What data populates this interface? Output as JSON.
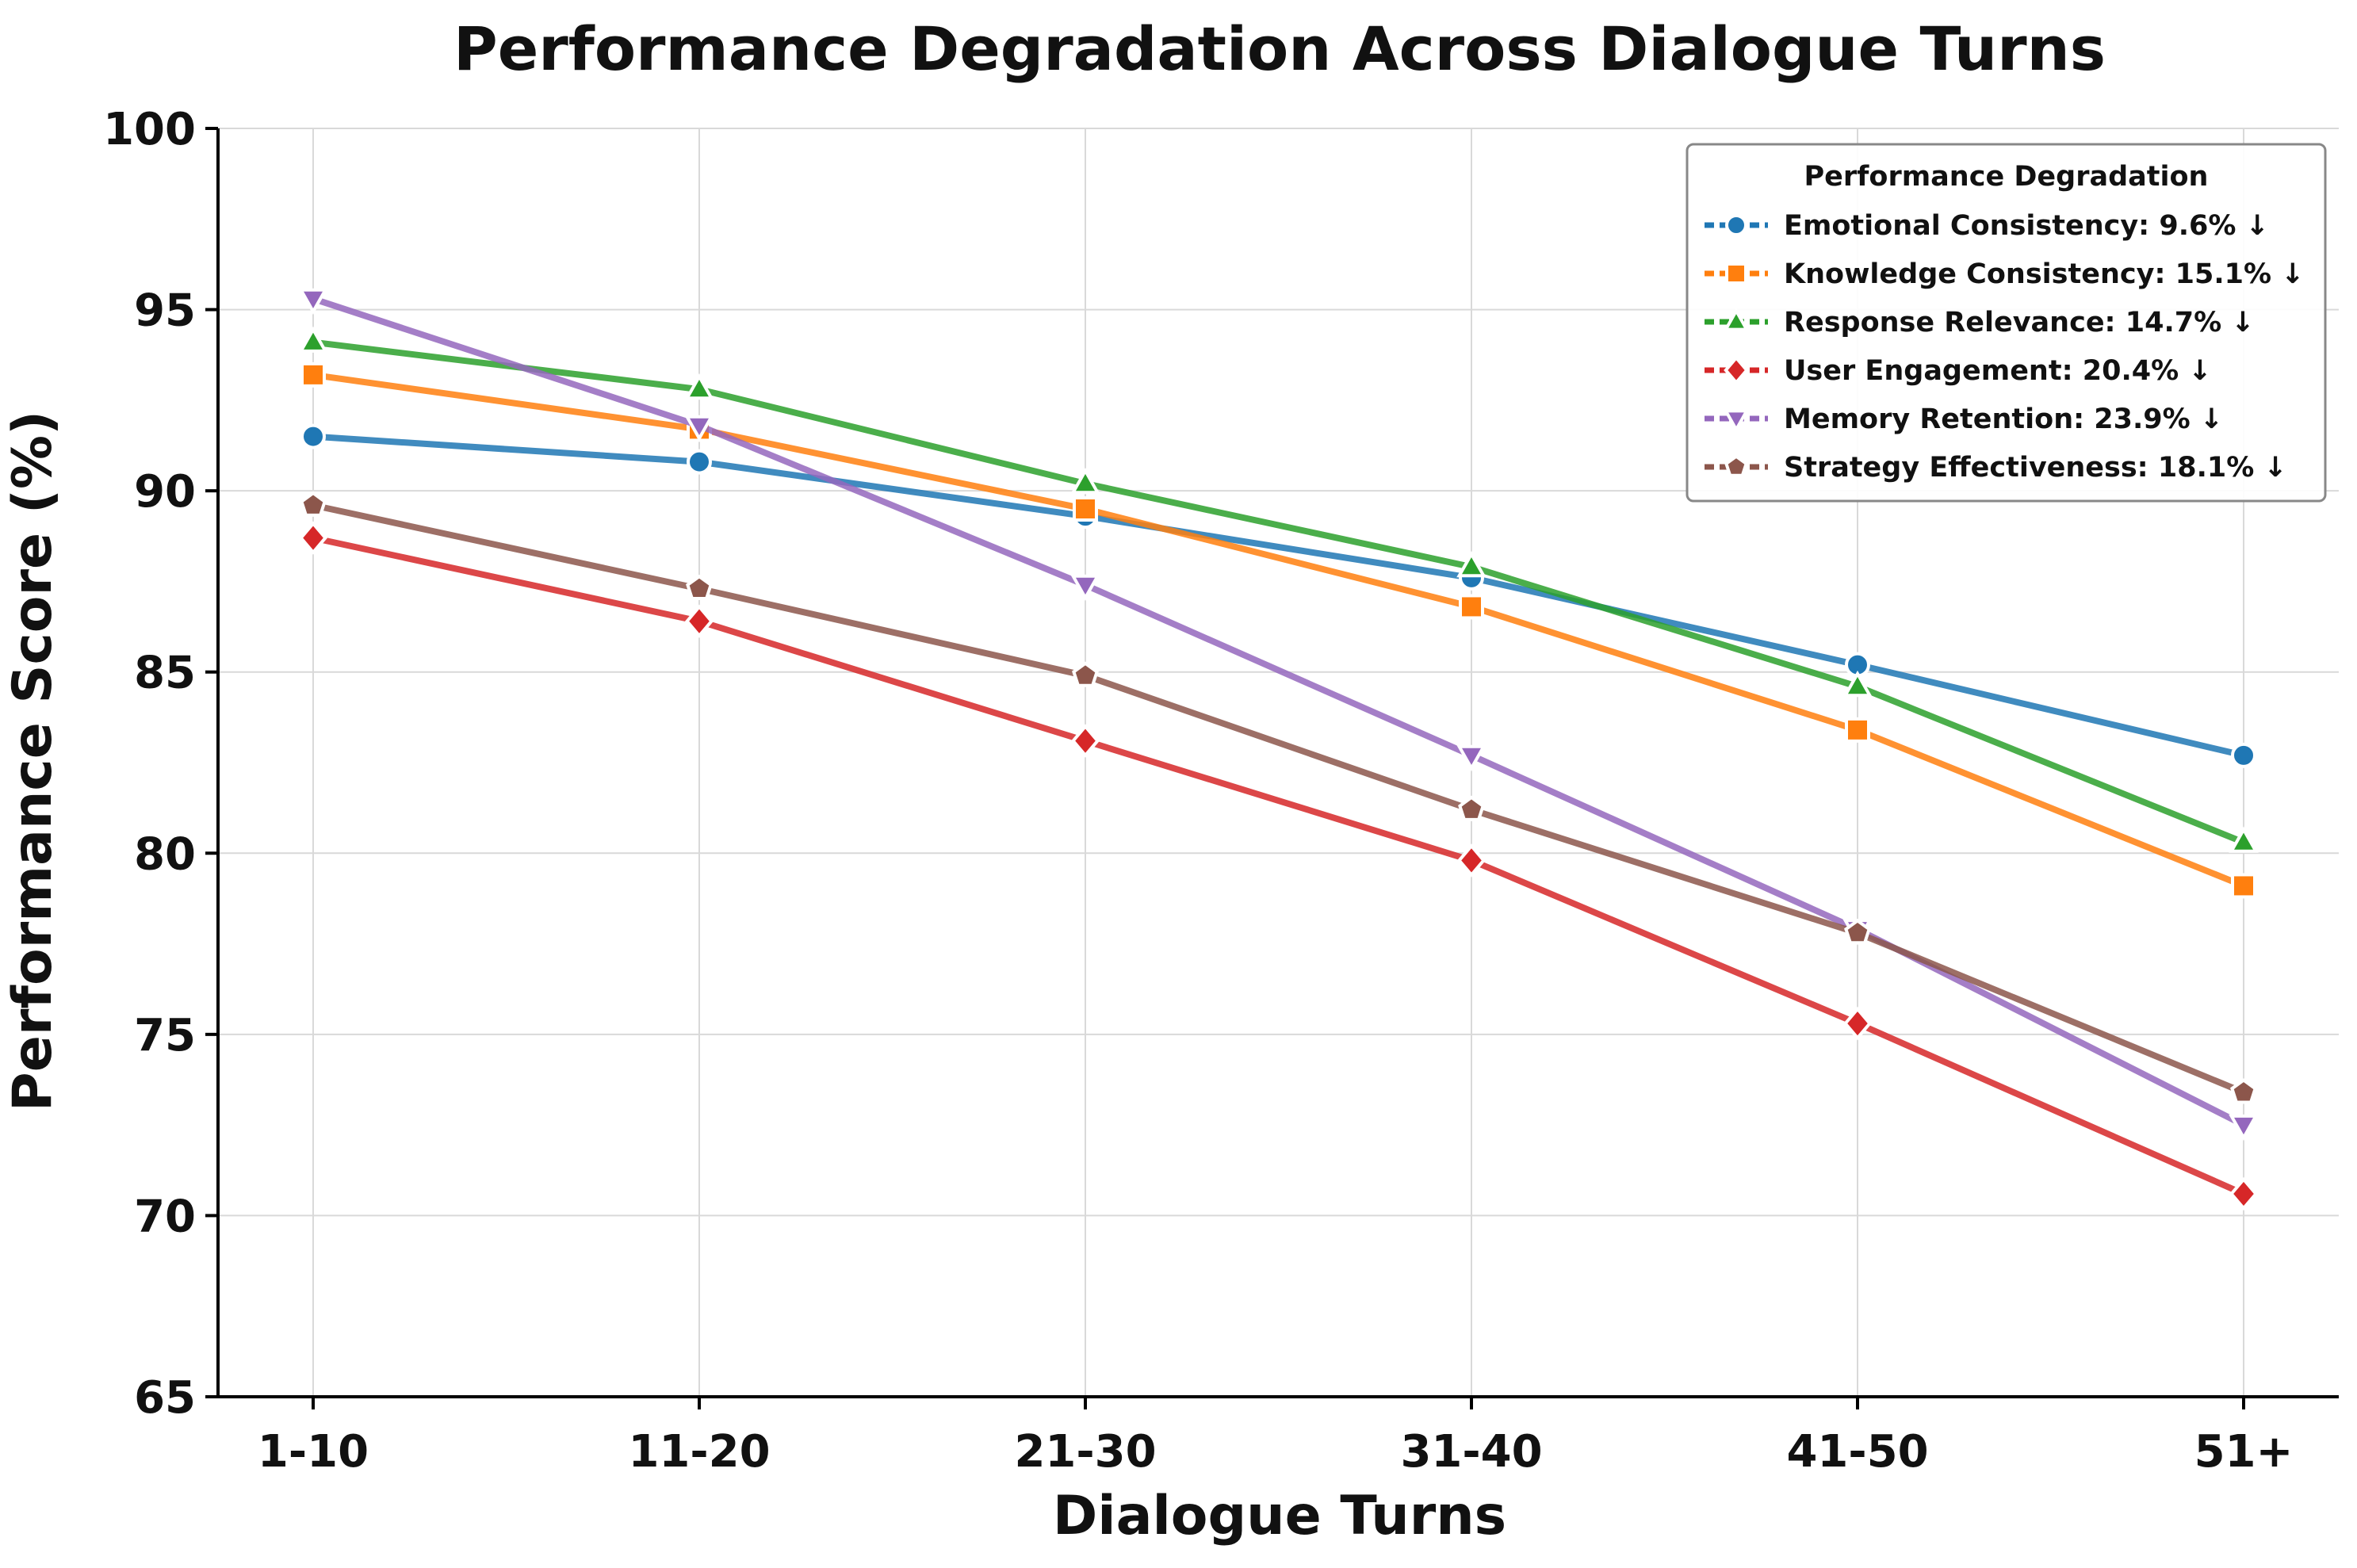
{
  "chart_data": {
    "type": "line",
    "title": "Performance Degradation Across Dialogue Turns",
    "xlabel": "Dialogue Turns",
    "ylabel": "Performance Score (%)",
    "categories": [
      "1-10",
      "11-20",
      "21-30",
      "31-40",
      "41-50",
      "51+"
    ],
    "ylim": [
      65,
      100
    ],
    "yticks": [
      65,
      70,
      75,
      80,
      85,
      90,
      95,
      100
    ],
    "grid": true,
    "legend": {
      "title": "Performance Degradation",
      "placement": "top-right"
    },
    "series": [
      {
        "name": "Emotional Consistency",
        "legend_label": "Emotional Consistency: 9.6% ↓",
        "color": "#1f77b4",
        "marker": "circle",
        "values": [
          91.5,
          90.8,
          89.3,
          87.6,
          85.2,
          82.7
        ]
      },
      {
        "name": "Knowledge Consistency",
        "legend_label": "Knowledge Consistency: 15.1% ↓",
        "color": "#ff7f0e",
        "marker": "square",
        "values": [
          93.2,
          91.7,
          89.5,
          86.8,
          83.4,
          79.1
        ]
      },
      {
        "name": "Response Relevance",
        "legend_label": "Response Relevance: 14.7% ↓",
        "color": "#2ca02c",
        "marker": "triangle-up",
        "values": [
          94.1,
          92.8,
          90.2,
          87.9,
          84.6,
          80.3
        ]
      },
      {
        "name": "User Engagement",
        "legend_label": "User Engagement: 20.4% ↓",
        "color": "#d62728",
        "marker": "diamond",
        "values": [
          88.7,
          86.4,
          83.1,
          79.8,
          75.3,
          70.6
        ]
      },
      {
        "name": "Memory Retention",
        "legend_label": "Memory Retention: 23.9% ↓",
        "color": "#9467bd",
        "marker": "triangle-down",
        "values": [
          95.3,
          91.8,
          87.4,
          82.7,
          77.9,
          72.5
        ]
      },
      {
        "name": "Strategy Effectiveness",
        "legend_label": "Strategy Effectiveness: 18.1% ↓",
        "color": "#8c564b",
        "marker": "pentagon",
        "values": [
          89.6,
          87.3,
          84.9,
          81.2,
          77.8,
          73.4
        ]
      }
    ]
  }
}
